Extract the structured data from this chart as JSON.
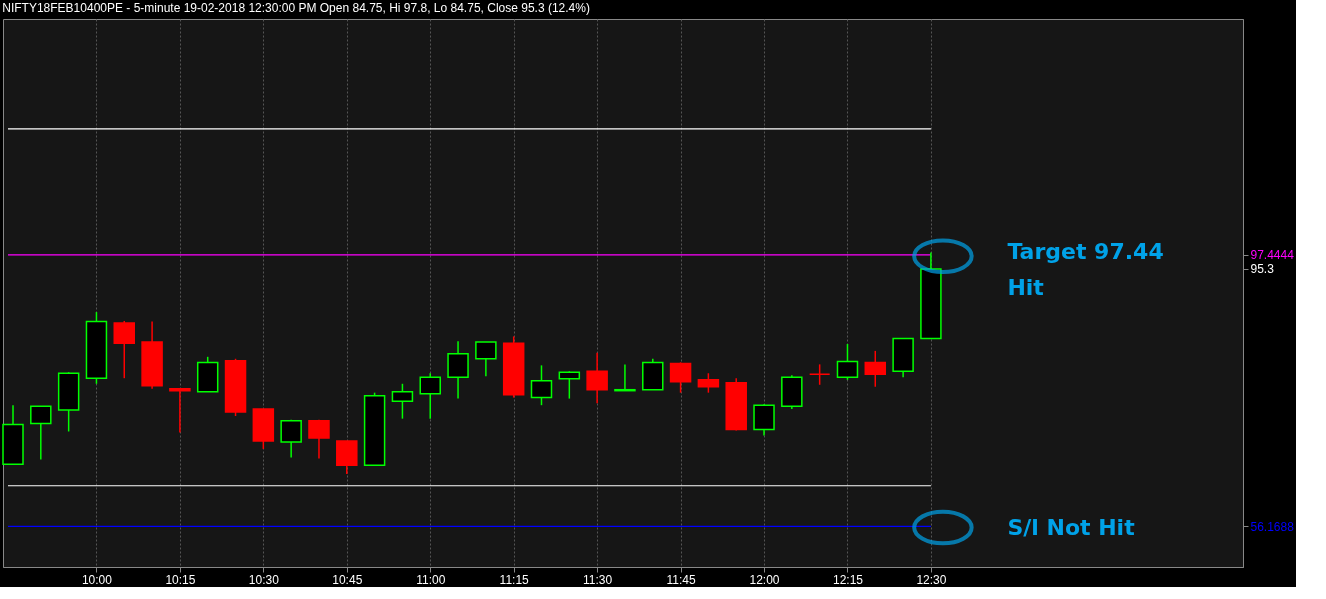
{
  "chart_data": {
    "type": "candlestick",
    "title": "NIFTY18FEB10400PE - 5-minute 19-02-2018 12:30:00 PM Open 84.75, Hi 97.8, Lo 84.75, Close 95.3 (12.4%)",
    "x": [
      9.75,
      9.8333,
      9.9167,
      10,
      10.0833,
      10.1667,
      10.25,
      10.3333,
      10.4167,
      10.5,
      10.5833,
      10.6667,
      10.75,
      10.8333,
      10.9167,
      11,
      11.0833,
      11.1667,
      11.25,
      11.3333,
      11.4167,
      11.5,
      11.5833,
      11.6667,
      11.75,
      11.8333,
      11.9167,
      12,
      12.0833,
      12.1667,
      12.25,
      12.3333,
      12.4167,
      12.5
    ],
    "ohlc": [
      [
        65.6,
        74.6,
        65.6,
        71.65
      ],
      [
        71.8,
        74.45,
        66.35,
        74.45
      ],
      [
        73.85,
        79.6,
        70.6,
        79.45
      ],
      [
        78.7,
        88.75,
        77.85,
        87.3
      ],
      [
        87.1,
        87.4,
        78.7,
        84.0
      ],
      [
        84.2,
        87.3,
        77.1,
        77.55
      ],
      [
        77.1,
        77.1,
        70.45,
        76.8
      ],
      [
        76.65,
        81.95,
        76.65,
        81.1
      ],
      [
        81.35,
        81.65,
        72.95,
        73.55
      ],
      [
        74.0,
        74.0,
        67.95,
        69.15
      ],
      [
        69.0,
        72.4,
        66.65,
        72.25
      ],
      [
        72.25,
        72.4,
        66.5,
        69.6
      ],
      [
        69.15,
        69.15,
        64.15,
        65.45
      ],
      [
        65.45,
        76.5,
        65.45,
        76.05
      ],
      [
        75.2,
        77.85,
        72.55,
        76.65
      ],
      [
        76.35,
        79.45,
        72.55,
        78.85
      ],
      [
        78.85,
        84.3,
        75.6,
        82.4
      ],
      [
        81.65,
        84.2,
        79.0,
        84.2
      ],
      [
        84.0,
        85.05,
        75.75,
        76.2
      ],
      [
        75.75,
        80.65,
        74.6,
        78.3
      ],
      [
        78.6,
        79.75,
        75.6,
        79.6
      ],
      [
        79.75,
        82.55,
        74.9,
        76.95
      ],
      [
        76.8,
        80.8,
        76.8,
        76.95
      ],
      [
        76.95,
        81.65,
        76.95,
        81.1
      ],
      [
        80.95,
        81.1,
        76.5,
        78.15
      ],
      [
        78.45,
        79.45,
        76.5,
        77.4
      ],
      [
        78.0,
        78.7,
        70.75,
        70.9
      ],
      [
        70.9,
        74.75,
        70.0,
        74.6
      ],
      [
        74.45,
        79.15,
        74.0,
        78.85
      ],
      [
        79.3,
        80.8,
        77.7,
        79.3
      ],
      [
        78.85,
        83.9,
        78.45,
        81.25
      ],
      [
        81.1,
        82.85,
        77.4,
        79.3
      ],
      [
        79.75,
        84.75,
        78.85,
        84.75
      ],
      [
        84.75,
        97.8,
        84.75,
        95.3
      ]
    ],
    "colors": [
      "#00ff00",
      "#00ff00",
      "#00ff00",
      "#00ff00",
      "#ff0000",
      "#ff0000",
      "#ff0000",
      "#00ff00",
      "#ff0000",
      "#ff0000",
      "#00ff00",
      "#ff0000",
      "#ff0000",
      "#00ff00",
      "#00ff00",
      "#00ff00",
      "#00ff00",
      "#00ff00",
      "#ff0000",
      "#00ff00",
      "#00ff00",
      "#ff0000",
      "#00ff00",
      "#00ff00",
      "#ff0000",
      "#ff0000",
      "#ff0000",
      "#00ff00",
      "#00ff00",
      "#ff0000",
      "#00ff00",
      "#ff0000",
      "#00ff00",
      "#00ff00"
    ],
    "xlim": [
      9.735,
      13.42
    ],
    "xticks": [
      {
        "value": 10,
        "label": "10:00"
      },
      {
        "value": 10.25,
        "label": "10:15"
      },
      {
        "value": 10.5,
        "label": "10:30"
      },
      {
        "value": 10.75,
        "label": "10:45"
      },
      {
        "value": 11,
        "label": "11:00"
      },
      {
        "value": 11.25,
        "label": "11:15"
      },
      {
        "value": 11.5,
        "label": "11:30"
      },
      {
        "value": 11.75,
        "label": "11:45"
      },
      {
        "value": 12,
        "label": "12:00"
      },
      {
        "value": 12.25,
        "label": "12:15"
      },
      {
        "value": 12.5,
        "label": "12:30"
      }
    ],
    "ylim": [
      50,
      133.3
    ],
    "yticks": [
      {
        "value": 56.1688,
        "label": "56.1688"
      },
      {
        "value": 95.3,
        "label": "95.3"
      },
      {
        "value": 97.4444,
        "label": "97.4444"
      }
    ],
    "ref_lines": [
      {
        "axis": "y",
        "value": 116.6,
        "color": "#ffffff"
      },
      {
        "axis": "y",
        "value": 97.4444,
        "color": "#ff00ff"
      },
      {
        "axis": "y",
        "value": 62.35,
        "color": "#ffffff"
      },
      {
        "axis": "y",
        "value": 56.1688,
        "color": "#0000ff"
      }
    ],
    "annotations": [
      "Target 97.44\nHit",
      "S/l Not Hit"
    ],
    "grid": "x"
  }
}
